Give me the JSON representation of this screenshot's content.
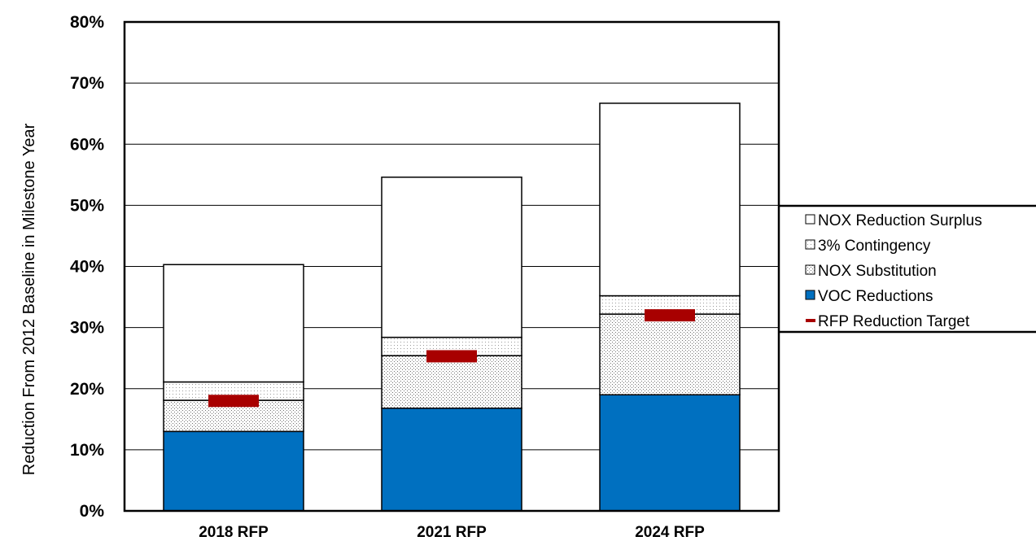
{
  "chart_data": {
    "type": "bar",
    "stacked": true,
    "title": "",
    "xlabel": "",
    "ylabel": "Reduction From 2012 Baseline in Milestone Year",
    "ylim": [
      0,
      80
    ],
    "yticks": [
      0,
      10,
      20,
      30,
      40,
      50,
      60,
      70,
      80
    ],
    "ytick_format": "percent",
    "grid": "horizontal",
    "legend_position": "right",
    "categories": [
      "2018 RFP",
      "2021 RFP",
      "2024 RFP"
    ],
    "series": [
      {
        "name": "VOC Reductions",
        "values": [
          13.0,
          16.8,
          19.0
        ],
        "color": "#0070c0",
        "fill": "solid"
      },
      {
        "name": "NOX Substitution",
        "values": [
          5.1,
          8.6,
          13.2
        ],
        "color": "#ffffff",
        "fill": "dotted"
      },
      {
        "name": "3% Contingency",
        "values": [
          3.0,
          3.0,
          3.0
        ],
        "color": "#ffffff",
        "fill": "dotted-light"
      },
      {
        "name": "NOX Reduction Surplus",
        "values": [
          19.2,
          26.2,
          31.5
        ],
        "color": "#ffffff",
        "fill": "none"
      }
    ],
    "target": {
      "name": "RFP Reduction Target",
      "values": [
        18.0,
        25.3,
        32.0
      ],
      "color": "#a80000"
    },
    "legend_order": [
      "NOX Reduction Surplus",
      "3% Contingency",
      "NOX Substitution",
      "VOC Reductions",
      "RFP Reduction Target"
    ]
  }
}
